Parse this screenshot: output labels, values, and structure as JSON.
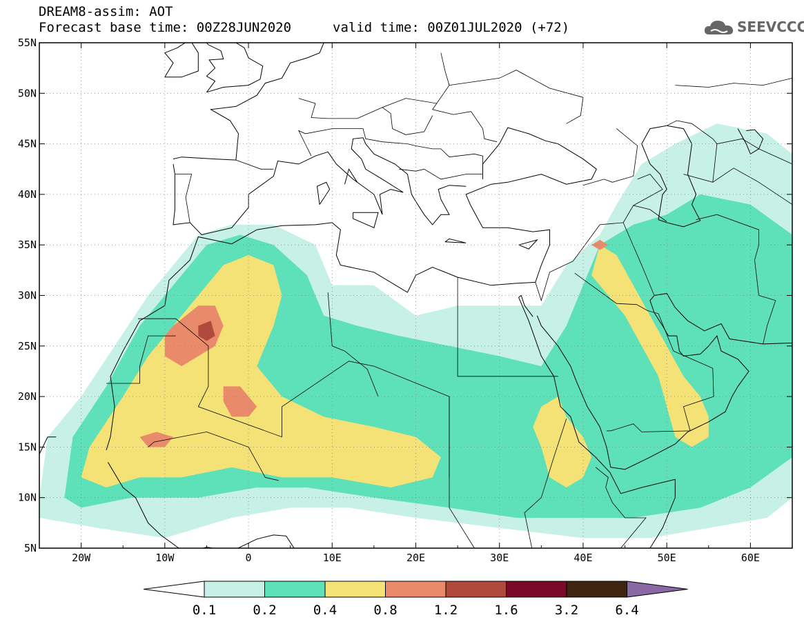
{
  "header": {
    "title_line1": "DREAM8-assim: AOT",
    "title_line2": "Forecast base time: 00Z28JUN2020",
    "valid": "valid time: 00Z01JUL2020 (+72)",
    "logo_text": "SEEVCCC",
    "logo_icon": "cloud-icon"
  },
  "axes": {
    "lon_range": [
      -25,
      65
    ],
    "lat_range": [
      5,
      55
    ],
    "lon_ticks": [
      {
        "v": -20,
        "label": "20W"
      },
      {
        "v": -10,
        "label": "10W"
      },
      {
        "v": 0,
        "label": "0"
      },
      {
        "v": 10,
        "label": "10E"
      },
      {
        "v": 20,
        "label": "20E"
      },
      {
        "v": 30,
        "label": "30E"
      },
      {
        "v": 40,
        "label": "40E"
      },
      {
        "v": 50,
        "label": "50E"
      },
      {
        "v": 60,
        "label": "60E"
      }
    ],
    "lat_ticks": [
      {
        "v": 55,
        "label": "55N"
      },
      {
        "v": 50,
        "label": "50N"
      },
      {
        "v": 45,
        "label": "45N"
      },
      {
        "v": 40,
        "label": "40N"
      },
      {
        "v": 35,
        "label": "35N"
      },
      {
        "v": 30,
        "label": "30N"
      },
      {
        "v": 25,
        "label": "25N"
      },
      {
        "v": 20,
        "label": "20N"
      },
      {
        "v": 15,
        "label": "15N"
      },
      {
        "v": 10,
        "label": "10N"
      },
      {
        "v": 5,
        "label": "5N"
      }
    ],
    "grid": "dotted"
  },
  "colorbar": {
    "levels": [
      "0.1",
      "0.2",
      "0.4",
      "0.8",
      "1.2",
      "1.6",
      "3.2",
      "6.4"
    ],
    "colors": [
      "#c7f0e6",
      "#5ee0b9",
      "#f5e276",
      "#e98a6a",
      "#b04a3c",
      "#7a0a28",
      "#3f2412",
      "#8a68a5"
    ],
    "under_color": "#ffffff",
    "over_color": "#8a68a5"
  },
  "chart_data": {
    "type": "map",
    "variable": "AOT",
    "units": "",
    "regions": [
      {
        "level": "0.1",
        "points": [
          [
            -25,
            10
          ],
          [
            -24,
            16
          ],
          [
            -20,
            20
          ],
          [
            -16,
            25
          ],
          [
            -12,
            30
          ],
          [
            -9,
            33
          ],
          [
            -6,
            36
          ],
          [
            -2,
            37
          ],
          [
            3,
            37
          ],
          [
            8,
            35
          ],
          [
            10,
            31
          ],
          [
            15,
            31
          ],
          [
            20,
            28
          ],
          [
            25,
            29
          ],
          [
            30,
            29
          ],
          [
            35,
            29
          ],
          [
            38,
            33
          ],
          [
            42,
            36
          ],
          [
            44,
            39
          ],
          [
            47,
            43
          ],
          [
            51,
            45
          ],
          [
            56,
            47
          ],
          [
            62,
            46
          ],
          [
            65,
            44
          ],
          [
            65,
            10
          ],
          [
            62,
            8
          ],
          [
            55,
            7
          ],
          [
            48,
            6
          ],
          [
            40,
            6
          ],
          [
            30,
            7
          ],
          [
            20,
            8
          ],
          [
            12,
            9
          ],
          [
            5,
            9
          ],
          [
            -2,
            8
          ],
          [
            -10,
            6
          ],
          [
            -18,
            7
          ],
          [
            -25,
            8
          ]
        ]
      },
      {
        "level": "0.2",
        "points": [
          [
            -22,
            10
          ],
          [
            -21,
            16
          ],
          [
            -17,
            21
          ],
          [
            -13,
            27
          ],
          [
            -9,
            31
          ],
          [
            -5,
            35
          ],
          [
            -1,
            36
          ],
          [
            3,
            35
          ],
          [
            7,
            32
          ],
          [
            9,
            28
          ],
          [
            13,
            27
          ],
          [
            18,
            26
          ],
          [
            24,
            25
          ],
          [
            30,
            24
          ],
          [
            35,
            23
          ],
          [
            38,
            27
          ],
          [
            40,
            31
          ],
          [
            42,
            35
          ],
          [
            46,
            37
          ],
          [
            50,
            38
          ],
          [
            54,
            40
          ],
          [
            60,
            39
          ],
          [
            65,
            36
          ],
          [
            65,
            14
          ],
          [
            60,
            11
          ],
          [
            54,
            9
          ],
          [
            46,
            8
          ],
          [
            40,
            8
          ],
          [
            32,
            8
          ],
          [
            24,
            9
          ],
          [
            15,
            10
          ],
          [
            7,
            11
          ],
          [
            1,
            11
          ],
          [
            -6,
            10
          ],
          [
            -14,
            10
          ],
          [
            -20,
            9
          ]
        ]
      },
      {
        "level": "0.4",
        "points": [
          [
            -20,
            12
          ],
          [
            -19,
            15
          ],
          [
            -15,
            20
          ],
          [
            -12,
            24
          ],
          [
            -9,
            27
          ],
          [
            -6,
            30
          ],
          [
            -3,
            33
          ],
          [
            0,
            34
          ],
          [
            3,
            33
          ],
          [
            4,
            30
          ],
          [
            3,
            27
          ],
          [
            1,
            23
          ],
          [
            4,
            20
          ],
          [
            9,
            18
          ],
          [
            15,
            17
          ],
          [
            20,
            16
          ],
          [
            23,
            14
          ],
          [
            22,
            12
          ],
          [
            17,
            11
          ],
          [
            10,
            12
          ],
          [
            4,
            12
          ],
          [
            -2,
            13
          ],
          [
            -8,
            12
          ],
          [
            -13,
            12
          ],
          [
            -17,
            11
          ]
        ]
      },
      {
        "level": "0.4",
        "points": [
          [
            41,
            32
          ],
          [
            42,
            35
          ],
          [
            44,
            34
          ],
          [
            46,
            31
          ],
          [
            48,
            28
          ],
          [
            50,
            25
          ],
          [
            52,
            22
          ],
          [
            54,
            20
          ],
          [
            55,
            18
          ],
          [
            55,
            16
          ],
          [
            53,
            15
          ],
          [
            51,
            16
          ],
          [
            50,
            19
          ],
          [
            49,
            22
          ],
          [
            47,
            25
          ],
          [
            45,
            28
          ],
          [
            43,
            30
          ]
        ]
      },
      {
        "level": "0.4",
        "points": [
          [
            37,
            20
          ],
          [
            38,
            18
          ],
          [
            40,
            16
          ],
          [
            41,
            14
          ],
          [
            40,
            12
          ],
          [
            38,
            11
          ],
          [
            36,
            12
          ],
          [
            35,
            15
          ],
          [
            34,
            17
          ],
          [
            35,
            19
          ]
        ]
      },
      {
        "level": "0.8",
        "points": [
          [
            -9,
            27
          ],
          [
            -6,
            29
          ],
          [
            -4,
            29
          ],
          [
            -3,
            27
          ],
          [
            -4,
            25
          ],
          [
            -6,
            24
          ],
          [
            -8,
            23
          ],
          [
            -10,
            24
          ],
          [
            -10,
            26
          ]
        ]
      },
      {
        "level": "0.8",
        "points": [
          [
            -3,
            21
          ],
          [
            -1,
            21
          ],
          [
            1,
            19
          ],
          [
            0,
            18
          ],
          [
            -2,
            18
          ],
          [
            -3,
            19.5
          ]
        ]
      },
      {
        "level": "0.8",
        "points": [
          [
            -13,
            16
          ],
          [
            -11,
            16.5
          ],
          [
            -9,
            16
          ],
          [
            -10,
            15
          ],
          [
            -12,
            15
          ]
        ]
      },
      {
        "level": "0.8",
        "points": [
          [
            41,
            35
          ],
          [
            42,
            35.5
          ],
          [
            43,
            35
          ],
          [
            42,
            34.5
          ]
        ]
      },
      {
        "level": "1.2",
        "points": [
          [
            -6,
            27
          ],
          [
            -4.5,
            27.5
          ],
          [
            -4,
            26
          ],
          [
            -5,
            25.5
          ],
          [
            -6,
            26
          ]
        ]
      }
    ]
  }
}
